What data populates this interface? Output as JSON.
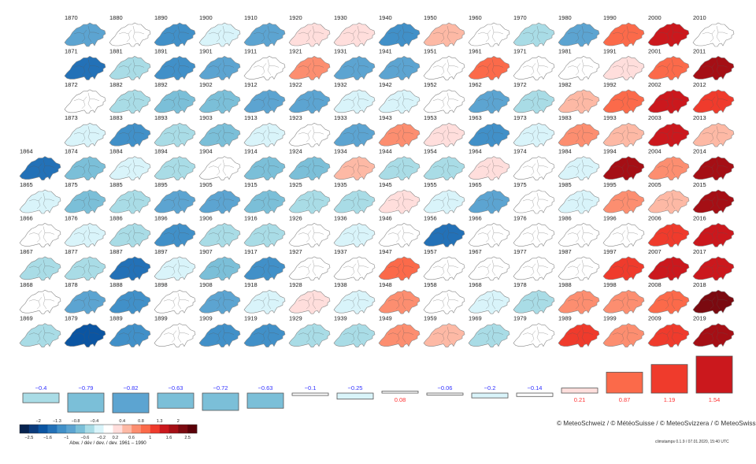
{
  "chart_data": {
    "type": "heatmap",
    "title": "",
    "reference_period": "1961 – 1990",
    "legend_title": "Abw. / dév / dev. / dev. 1961 – 1990",
    "legend_placement": "bottom-left",
    "colorbar": {
      "breaks": [
        -2.5,
        -2,
        -1.6,
        -1.3,
        -1,
        -0.8,
        -0.6,
        -0.4,
        -0.2,
        0.2,
        0.4,
        0.6,
        0.8,
        1,
        1.3,
        1.6,
        2,
        2.5
      ],
      "top_labels": [
        "-2",
        "-1.3",
        "-0.8",
        "-0.4",
        "0.4",
        "0.8",
        "1.3",
        "2"
      ],
      "top_label_values": [
        -2,
        -1.3,
        -0.8,
        -0.4,
        0.4,
        0.8,
        1.3,
        2
      ],
      "bottom_labels": [
        "-2.5",
        "-1.6",
        "-1",
        "-0.6",
        "-0.2",
        "0.2",
        "0.6",
        "1",
        "1.6",
        "2.5"
      ],
      "bottom_label_values": [
        -2.5,
        -1.6,
        -1,
        -0.6,
        -0.2,
        0.2,
        0.6,
        1,
        1.6,
        2.5
      ],
      "colors": [
        "#08234f",
        "#0b3b7c",
        "#0b55a2",
        "#2371b7",
        "#4190c8",
        "#5ca4d1",
        "#7bbfd8",
        "#a9dce6",
        "#d9f4fa",
        "#ffffff",
        "#ffdedc",
        "#fdb9a5",
        "#fc8e70",
        "#fb6a4a",
        "#ef3b2c",
        "#cb181d",
        "#a50f15",
        "#7b0a10",
        "#5a0008"
      ]
    },
    "years": [
      {
        "year": "1864",
        "anomaly": -1.4
      },
      {
        "year": "1865",
        "anomaly": -0.2
      },
      {
        "year": "1866",
        "anomaly": 0.0
      },
      {
        "year": "1867",
        "anomaly": -0.5
      },
      {
        "year": "1868",
        "anomaly": 0.2
      },
      {
        "year": "1869",
        "anomaly": -0.5
      },
      {
        "year": "1870",
        "anomaly": -0.9
      },
      {
        "year": "1871",
        "anomaly": -1.3
      },
      {
        "year": "1872",
        "anomaly": 0.1
      },
      {
        "year": "1873",
        "anomaly": -0.2
      },
      {
        "year": "1874",
        "anomaly": -0.7
      },
      {
        "year": "1875",
        "anomaly": -0.7
      },
      {
        "year": "1876",
        "anomaly": -0.3
      },
      {
        "year": "1877",
        "anomaly": -0.4
      },
      {
        "year": "1878",
        "anomaly": -0.9
      },
      {
        "year": "1879",
        "anomaly": -1.6
      },
      {
        "year": "1880",
        "anomaly": -0.1
      },
      {
        "year": "1881",
        "anomaly": -0.5
      },
      {
        "year": "1882",
        "anomaly": -0.5
      },
      {
        "year": "1883",
        "anomaly": -1.0
      },
      {
        "year": "1884",
        "anomaly": -0.3
      },
      {
        "year": "1885",
        "anomaly": -0.5
      },
      {
        "year": "1886",
        "anomaly": -0.5
      },
      {
        "year": "1887",
        "anomaly": -1.4
      },
      {
        "year": "1888",
        "anomaly": -1.1
      },
      {
        "year": "1889",
        "anomaly": -1.2
      },
      {
        "year": "1890",
        "anomaly": -1.2
      },
      {
        "year": "1891",
        "anomaly": -1.1
      },
      {
        "year": "1892",
        "anomaly": -0.6
      },
      {
        "year": "1893",
        "anomaly": -0.4
      },
      {
        "year": "1894",
        "anomaly": -0.5
      },
      {
        "year": "1895",
        "anomaly": -0.9
      },
      {
        "year": "1896",
        "anomaly": -1.1
      },
      {
        "year": "1897",
        "anomaly": -0.2
      },
      {
        "year": "1898",
        "anomaly": 0.1
      },
      {
        "year": "1899",
        "anomaly": 0.0
      },
      {
        "year": "1900",
        "anomaly": -0.2
      },
      {
        "year": "1901",
        "anomaly": -0.9
      },
      {
        "year": "1902",
        "anomaly": -0.7
      },
      {
        "year": "1903",
        "anomaly": -0.7
      },
      {
        "year": "1904",
        "anomaly": 0.0
      },
      {
        "year": "1905",
        "anomaly": -0.9
      },
      {
        "year": "1906",
        "anomaly": -0.5
      },
      {
        "year": "1907",
        "anomaly": -0.6
      },
      {
        "year": "1908",
        "anomaly": -0.9
      },
      {
        "year": "1909",
        "anomaly": -1.1
      },
      {
        "year": "1910",
        "anomaly": -0.8
      },
      {
        "year": "1911",
        "anomaly": 0.2
      },
      {
        "year": "1912",
        "anomaly": -0.9
      },
      {
        "year": "1913",
        "anomaly": -0.2
      },
      {
        "year": "1914",
        "anomaly": -0.7
      },
      {
        "year": "1915",
        "anomaly": -0.7
      },
      {
        "year": "1916",
        "anomaly": -0.4
      },
      {
        "year": "1917",
        "anomaly": -1.1
      },
      {
        "year": "1918",
        "anomaly": -0.3
      },
      {
        "year": "1919",
        "anomaly": -1.0
      },
      {
        "year": "1920",
        "anomaly": 0.3
      },
      {
        "year": "1921",
        "anomaly": 0.7
      },
      {
        "year": "1922",
        "anomaly": -0.9
      },
      {
        "year": "1923",
        "anomaly": -0.1
      },
      {
        "year": "1924",
        "anomaly": -0.6
      },
      {
        "year": "1925",
        "anomaly": -0.5
      },
      {
        "year": "1926",
        "anomaly": 0.0
      },
      {
        "year": "1927",
        "anomaly": 0.0
      },
      {
        "year": "1928",
        "anomaly": 0.3
      },
      {
        "year": "1929",
        "anomaly": -0.5
      },
      {
        "year": "1930",
        "anomaly": 0.4
      },
      {
        "year": "1931",
        "anomaly": -0.9
      },
      {
        "year": "1932",
        "anomaly": -0.3
      },
      {
        "year": "1933",
        "anomaly": -0.8
      },
      {
        "year": "1934",
        "anomaly": 0.6
      },
      {
        "year": "1935",
        "anomaly": -0.5
      },
      {
        "year": "1936",
        "anomaly": -0.2
      },
      {
        "year": "1937",
        "anomaly": 0.1
      },
      {
        "year": "1938",
        "anomaly": -0.2
      },
      {
        "year": "1939",
        "anomaly": -0.5
      },
      {
        "year": "1940",
        "anomaly": -1.0
      },
      {
        "year": "1941",
        "anomaly": -0.9
      },
      {
        "year": "1942",
        "anomaly": -0.3
      },
      {
        "year": "1943",
        "anomaly": 0.8
      },
      {
        "year": "1944",
        "anomaly": -0.5
      },
      {
        "year": "1945",
        "anomaly": 0.3
      },
      {
        "year": "1946",
        "anomaly": 0.1
      },
      {
        "year": "1947",
        "anomaly": 1.0
      },
      {
        "year": "1948",
        "anomaly": 0.7
      },
      {
        "year": "1949",
        "anomaly": 0.8
      },
      {
        "year": "1950",
        "anomaly": 0.5
      },
      {
        "year": "1951",
        "anomaly": 0.1
      },
      {
        "year": "1952",
        "anomaly": -0.1
      },
      {
        "year": "1953",
        "anomaly": 0.3
      },
      {
        "year": "1954",
        "anomaly": -0.5
      },
      {
        "year": "1955",
        "anomaly": -0.3
      },
      {
        "year": "1956",
        "anomaly": -1.3
      },
      {
        "year": "1957",
        "anomaly": 0.2
      },
      {
        "year": "1958",
        "anomaly": 0.1
      },
      {
        "year": "1959",
        "anomaly": 0.6
      },
      {
        "year": "1960",
        "anomaly": -0.1
      },
      {
        "year": "1961",
        "anomaly": 0.9
      },
      {
        "year": "1962",
        "anomaly": -0.9
      },
      {
        "year": "1963",
        "anomaly": -1.0
      },
      {
        "year": "1964",
        "anomaly": 0.3
      },
      {
        "year": "1965",
        "anomaly": -0.8
      },
      {
        "year": "1966",
        "anomaly": 0.1
      },
      {
        "year": "1967",
        "anomaly": 0.1
      },
      {
        "year": "1968",
        "anomaly": -0.3
      },
      {
        "year": "1969",
        "anomaly": -0.5
      },
      {
        "year": "1970",
        "anomaly": -0.5
      },
      {
        "year": "1971",
        "anomaly": 0.0
      },
      {
        "year": "1972",
        "anomaly": -0.4
      },
      {
        "year": "1973",
        "anomaly": -0.3
      },
      {
        "year": "1974",
        "anomaly": 0.0
      },
      {
        "year": "1975",
        "anomaly": 0.1
      },
      {
        "year": "1976",
        "anomaly": 0.1
      },
      {
        "year": "1977",
        "anomaly": 0.2
      },
      {
        "year": "1978",
        "anomaly": -0.5
      },
      {
        "year": "1979",
        "anomaly": -0.1
      },
      {
        "year": "1980",
        "anomaly": -0.8
      },
      {
        "year": "1981",
        "anomaly": -0.1
      },
      {
        "year": "1982",
        "anomaly": 0.6
      },
      {
        "year": "1983",
        "anomaly": 0.7
      },
      {
        "year": "1984",
        "anomaly": -0.3
      },
      {
        "year": "1985",
        "anomaly": -0.3
      },
      {
        "year": "1986",
        "anomaly": 0.0
      },
      {
        "year": "1987",
        "anomaly": 0.2
      },
      {
        "year": "1988",
        "anomaly": 0.8
      },
      {
        "year": "1989",
        "anomaly": 1.1
      },
      {
        "year": "1990",
        "anomaly": 1.0
      },
      {
        "year": "1991",
        "anomaly": 0.3
      },
      {
        "year": "1992",
        "anomaly": 1.0
      },
      {
        "year": "1993",
        "anomaly": 0.6
      },
      {
        "year": "1994",
        "anomaly": 1.7
      },
      {
        "year": "1995",
        "anomaly": 0.7
      },
      {
        "year": "1996",
        "anomaly": 0.1
      },
      {
        "year": "1997",
        "anomaly": 1.3
      },
      {
        "year": "1998",
        "anomaly": 0.8
      },
      {
        "year": "1999",
        "anomaly": 0.8
      },
      {
        "year": "2000",
        "anomaly": 1.5
      },
      {
        "year": "2001",
        "anomaly": 0.9
      },
      {
        "year": "2002",
        "anomaly": 1.4
      },
      {
        "year": "2003",
        "anomaly": 1.6
      },
      {
        "year": "2004",
        "anomaly": 0.7
      },
      {
        "year": "2005",
        "anomaly": 0.6
      },
      {
        "year": "2006",
        "anomaly": 1.3
      },
      {
        "year": "2007",
        "anomaly": 1.4
      },
      {
        "year": "2008",
        "anomaly": 1.0
      },
      {
        "year": "2009",
        "anomaly": 1.3
      },
      {
        "year": "2010",
        "anomaly": 0.2
      },
      {
        "year": "2011",
        "anomaly": 2.0
      },
      {
        "year": "2012",
        "anomaly": 1.1
      },
      {
        "year": "2013",
        "anomaly": 0.6
      },
      {
        "year": "2014",
        "anomaly": 1.8
      },
      {
        "year": "2015",
        "anomaly": 2.0
      },
      {
        "year": "2016",
        "anomaly": 1.4
      },
      {
        "year": "2017",
        "anomaly": 1.4
      },
      {
        "year": "2018",
        "anomaly": 2.1
      },
      {
        "year": "2019",
        "anomaly": 1.7
      }
    ],
    "decade_means": [
      {
        "label": "−0.4",
        "value": -0.4
      },
      {
        "label": "−0.79",
        "value": -0.79
      },
      {
        "label": "−0.82",
        "value": -0.82
      },
      {
        "label": "−0.63",
        "value": -0.63
      },
      {
        "label": "−0.72",
        "value": -0.72
      },
      {
        "label": "−0.63",
        "value": -0.63
      },
      {
        "label": "−0.1",
        "value": -0.1
      },
      {
        "label": "−0.25",
        "value": -0.25
      },
      {
        "label": "0.08",
        "value": 0.08
      },
      {
        "label": "−0.06",
        "value": -0.06
      },
      {
        "label": "−0.2",
        "value": -0.2
      },
      {
        "label": "−0.14",
        "value": -0.14
      },
      {
        "label": "0.21",
        "value": 0.21
      },
      {
        "label": "0.87",
        "value": 0.87
      },
      {
        "label": "1.19",
        "value": 1.19
      },
      {
        "label": "1.54",
        "value": 1.54
      }
    ],
    "negative_label_color": "#3333ff",
    "positive_label_color": "#ff3333"
  },
  "footer": {
    "copyright": "© MeteoSchweiz / © MétéoSuisse / © MeteoSvizzera / © MeteoSwiss",
    "stamp": "climstamps 0.1.9 / 07.01.2020, 15:40 UTC"
  }
}
